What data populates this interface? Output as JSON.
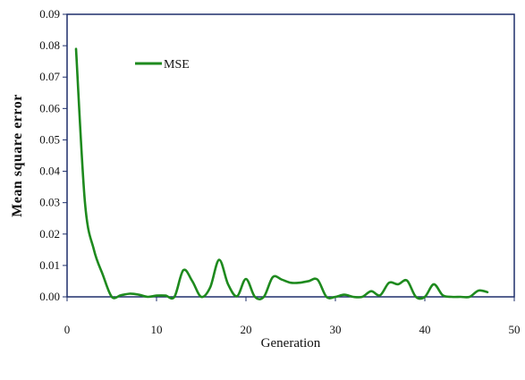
{
  "chart_data": {
    "type": "line",
    "title": "",
    "xlabel": "Generation",
    "ylabel": "Mean square error",
    "xlim": [
      0,
      50
    ],
    "ylim": [
      0,
      0.09
    ],
    "x_ticks": [
      "0",
      "10",
      "20",
      "30",
      "40",
      "50"
    ],
    "y_ticks": [
      "0.00",
      "0.01",
      "0.02",
      "0.03",
      "0.04",
      "0.05",
      "0.06",
      "0.07",
      "0.08",
      "0.09"
    ],
    "grid": false,
    "legend_position": "top-left",
    "series": [
      {
        "name": "MSE",
        "color": "#1e8a1e",
        "x": [
          1,
          2,
          3,
          4,
          5,
          6,
          7,
          8,
          9,
          10,
          11,
          12,
          13,
          14,
          15,
          16,
          17,
          18,
          19,
          20,
          21,
          22,
          23,
          24,
          25,
          26,
          27,
          28,
          29,
          30,
          31,
          32,
          33,
          34,
          35,
          36,
          37,
          38,
          39,
          40,
          41,
          42,
          43,
          44,
          45,
          46,
          47
        ],
        "values": [
          0.079,
          0.03,
          0.015,
          0.007,
          0.0,
          0.0005,
          0.001,
          0.0007,
          0.0,
          0.0004,
          0.0004,
          0.0,
          0.0085,
          0.005,
          0.0,
          0.003,
          0.0118,
          0.004,
          0.0002,
          0.0057,
          0.0,
          0.0,
          0.0063,
          0.0055,
          0.0045,
          0.0045,
          0.005,
          0.0055,
          0.0,
          0.0,
          0.0007,
          0.0,
          0.0,
          0.0018,
          0.0005,
          0.0045,
          0.004,
          0.0052,
          0.0,
          0.0,
          0.004,
          0.0005,
          0.0,
          0.0,
          0.0,
          0.002,
          0.0015
        ]
      }
    ]
  }
}
